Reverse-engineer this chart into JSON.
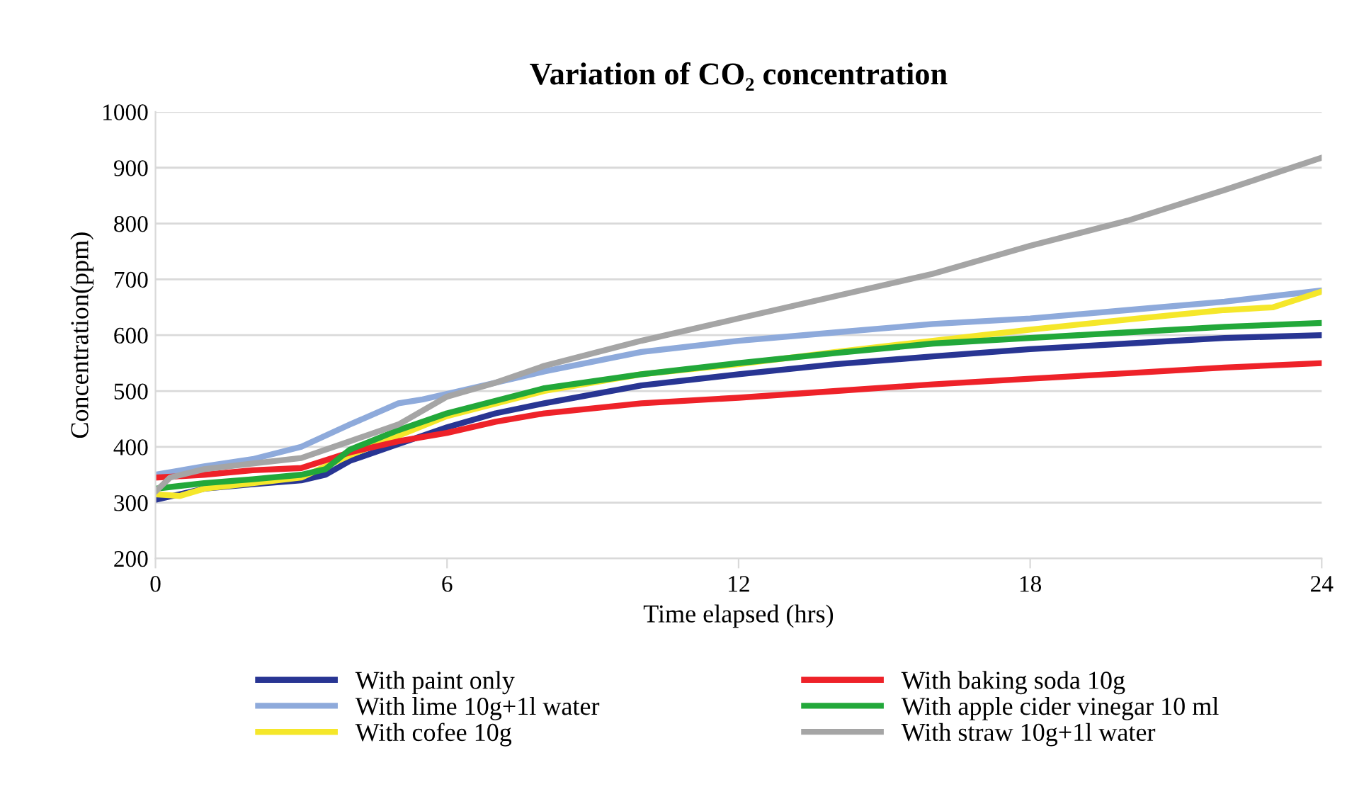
{
  "chart_data": {
    "type": "line",
    "title": "Variation of CO₂ concentration",
    "xlabel": "Time elapsed (hrs)",
    "ylabel": "Concentration(ppm)",
    "xlim": [
      0,
      24
    ],
    "xticks": [
      0,
      6,
      12,
      18,
      24
    ],
    "ylim": [
      200,
      1000
    ],
    "yticks": [
      200,
      300,
      400,
      500,
      600,
      700,
      800,
      900,
      1000
    ],
    "grid": "y",
    "legend": "bottom",
    "marker": "none",
    "line_style": "solid",
    "series": [
      {
        "name": "With paint only",
        "color": "#283593",
        "x": [
          0,
          1,
          2,
          3,
          3.5,
          4,
          5,
          6,
          7,
          8,
          10,
          12,
          14,
          16,
          18,
          20,
          22,
          24
        ],
        "values": [
          305,
          325,
          333,
          340,
          350,
          375,
          405,
          435,
          460,
          478,
          510,
          530,
          548,
          562,
          575,
          585,
          595,
          600
        ]
      },
      {
        "name": "With lime 10g+1l water",
        "color": "#8eaadb",
        "x": [
          0,
          1,
          2,
          3,
          4,
          5,
          5.5,
          6,
          8,
          10,
          12,
          14,
          16,
          18,
          20,
          22,
          24
        ],
        "values": [
          350,
          365,
          378,
          400,
          440,
          478,
          485,
          495,
          535,
          570,
          590,
          605,
          620,
          630,
          645,
          660,
          680
        ]
      },
      {
        "name": "With cofee 10g",
        "color": "#f5e72a",
        "x": [
          0,
          0.5,
          1,
          2,
          3,
          4,
          5,
          6,
          8,
          10,
          12,
          14,
          16,
          18,
          20,
          22,
          23,
          24
        ],
        "values": [
          315,
          312,
          325,
          335,
          345,
          385,
          420,
          455,
          500,
          530,
          548,
          570,
          590,
          610,
          628,
          645,
          650,
          678
        ]
      },
      {
        "name": "With baking soda 10g",
        "color": "#ee2229",
        "x": [
          0,
          1,
          2,
          3,
          4,
          5,
          6,
          7,
          8,
          10,
          12,
          14,
          16,
          18,
          20,
          22,
          24
        ],
        "values": [
          345,
          350,
          358,
          362,
          390,
          410,
          425,
          445,
          460,
          478,
          488,
          500,
          512,
          522,
          532,
          542,
          550
        ]
      },
      {
        "name": "With apple cider vinegar 10 ml",
        "color": "#22a83a",
        "x": [
          0,
          1,
          2,
          3,
          3.5,
          4,
          5,
          6,
          8,
          10,
          12,
          14,
          16,
          18,
          20,
          22,
          24
        ],
        "values": [
          325,
          335,
          342,
          350,
          360,
          395,
          430,
          460,
          505,
          530,
          550,
          568,
          585,
          595,
          605,
          615,
          622
        ]
      },
      {
        "name": "With straw 10g+1l water",
        "color": "#a5a5a5",
        "x": [
          0,
          0.3,
          1,
          2,
          3,
          4,
          5,
          6,
          7,
          8,
          10,
          12,
          14,
          16,
          18,
          20,
          22,
          24
        ],
        "values": [
          320,
          345,
          360,
          370,
          380,
          410,
          440,
          490,
          515,
          545,
          590,
          630,
          670,
          710,
          760,
          805,
          860,
          918
        ]
      }
    ]
  }
}
